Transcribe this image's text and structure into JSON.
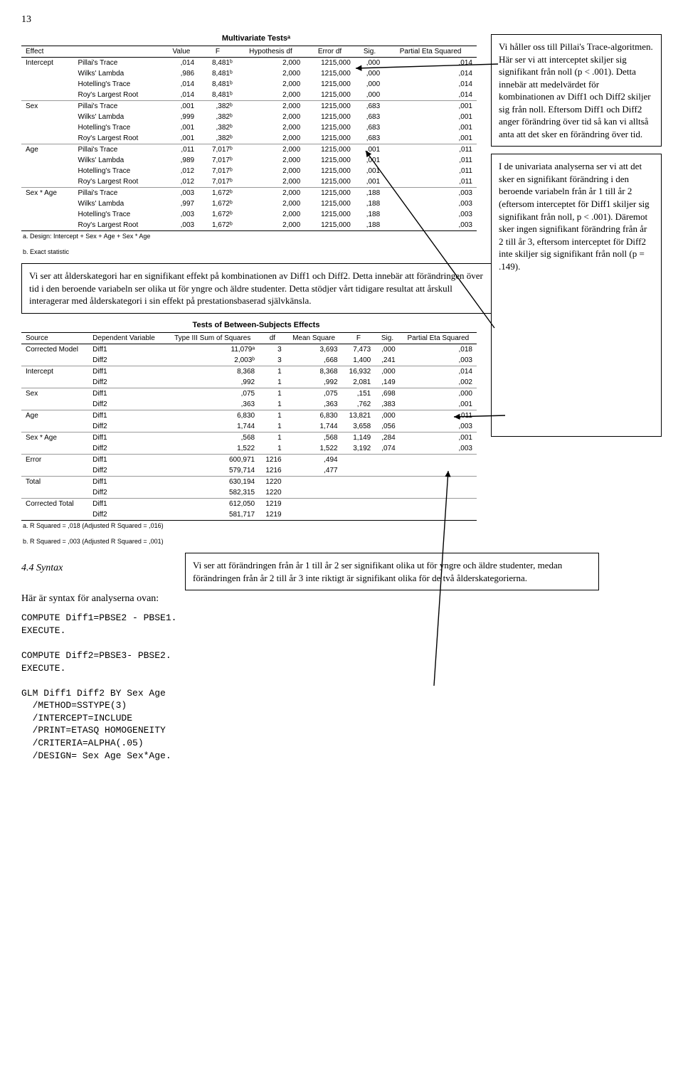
{
  "page_number": "13",
  "table1": {
    "title": "Multivariate Testsᵃ",
    "headers": [
      "Effect",
      "",
      "Value",
      "F",
      "Hypothesis df",
      "Error df",
      "Sig.",
      "Partial Eta Squared"
    ],
    "rows": [
      [
        "Intercept",
        "Pillai's Trace",
        ",014",
        "8,481ᵇ",
        "2,000",
        "1215,000",
        ",000",
        ",014"
      ],
      [
        "",
        "Wilks' Lambda",
        ",986",
        "8,481ᵇ",
        "2,000",
        "1215,000",
        ",000",
        ",014"
      ],
      [
        "",
        "Hotelling's Trace",
        ",014",
        "8,481ᵇ",
        "2,000",
        "1215,000",
        ",000",
        ",014"
      ],
      [
        "",
        "Roy's Largest Root",
        ",014",
        "8,481ᵇ",
        "2,000",
        "1215,000",
        ",000",
        ",014"
      ],
      [
        "Sex",
        "Pillai's Trace",
        ",001",
        ",382ᵇ",
        "2,000",
        "1215,000",
        ",683",
        ",001"
      ],
      [
        "",
        "Wilks' Lambda",
        ",999",
        ",382ᵇ",
        "2,000",
        "1215,000",
        ",683",
        ",001"
      ],
      [
        "",
        "Hotelling's Trace",
        ",001",
        ",382ᵇ",
        "2,000",
        "1215,000",
        ",683",
        ",001"
      ],
      [
        "",
        "Roy's Largest Root",
        ",001",
        ",382ᵇ",
        "2,000",
        "1215,000",
        ",683",
        ",001"
      ],
      [
        "Age",
        "Pillai's Trace",
        ",011",
        "7,017ᵇ",
        "2,000",
        "1215,000",
        ",001",
        ",011"
      ],
      [
        "",
        "Wilks' Lambda",
        ",989",
        "7,017ᵇ",
        "2,000",
        "1215,000",
        ",001",
        ",011"
      ],
      [
        "",
        "Hotelling's Trace",
        ",012",
        "7,017ᵇ",
        "2,000",
        "1215,000",
        ",001",
        ",011"
      ],
      [
        "",
        "Roy's Largest Root",
        ",012",
        "7,017ᵇ",
        "2,000",
        "1215,000",
        ",001",
        ",011"
      ],
      [
        "Sex * Age",
        "Pillai's Trace",
        ",003",
        "1,672ᵇ",
        "2,000",
        "1215,000",
        ",188",
        ",003"
      ],
      [
        "",
        "Wilks' Lambda",
        ",997",
        "1,672ᵇ",
        "2,000",
        "1215,000",
        ",188",
        ",003"
      ],
      [
        "",
        "Hotelling's Trace",
        ",003",
        "1,672ᵇ",
        "2,000",
        "1215,000",
        ",188",
        ",003"
      ],
      [
        "",
        "Roy's Largest Root",
        ",003",
        "1,672ᵇ",
        "2,000",
        "1215,000",
        ",188",
        ",003"
      ]
    ],
    "foot_a": "a. Design: Intercept + Sex + Age + Sex * Age",
    "foot_b": "b. Exact statistic"
  },
  "callout_upper_right_1": "Vi håller oss till Pillai's Trace-algoritmen. Här ser vi att interceptet skiljer sig signifikant från noll (p < .001). Detta innebär att medelvärdet för kombinationen av Diff1 och Diff2 skiljer sig från noll. Eftersom Diff1 och Diff2 anger förändring över tid så kan vi alltså anta att det sker en förändring över tid.",
  "callout_upper_right_2": "I de univariata analyserna ser vi att det sker en signifikant förändring i den beroende variabeln från år 1 till år 2 (eftersom interceptet för Diff1 skiljer sig signifikant från noll, p < .001). Däremot sker ingen signifikant förändring från år 2 till år 3, eftersom interceptet för Diff2 inte skiljer sig signifikant från noll (p = .149).",
  "callout_under_table1": "Vi ser att ålderskategori har en signifikant effekt på kombinationen av Diff1 och Diff2. Detta innebär att förändringen över tid i den beroende variabeln ser olika ut för yngre och äldre studenter. Detta stödjer vårt tidigare resultat att årskull interagerar med ålderskategori i sin effekt på prestationsbaserad självkänsla.",
  "table2": {
    "title": "Tests of Between-Subjects Effects",
    "headers": [
      "Source",
      "Dependent Variable",
      "Type III Sum of Squares",
      "df",
      "Mean Square",
      "F",
      "Sig.",
      "Partial Eta Squared"
    ],
    "rows": [
      [
        "Corrected Model",
        "Diff1",
        "11,079ᵃ",
        "3",
        "3,693",
        "7,473",
        ",000",
        ",018"
      ],
      [
        "",
        "Diff2",
        "2,003ᵇ",
        "3",
        ",668",
        "1,400",
        ",241",
        ",003"
      ],
      [
        "Intercept",
        "Diff1",
        "8,368",
        "1",
        "8,368",
        "16,932",
        ",000",
        ",014"
      ],
      [
        "",
        "Diff2",
        ",992",
        "1",
        ",992",
        "2,081",
        ",149",
        ",002"
      ],
      [
        "Sex",
        "Diff1",
        ",075",
        "1",
        ",075",
        ",151",
        ",698",
        ",000"
      ],
      [
        "",
        "Diff2",
        ",363",
        "1",
        ",363",
        ",762",
        ",383",
        ",001"
      ],
      [
        "Age",
        "Diff1",
        "6,830",
        "1",
        "6,830",
        "13,821",
        ",000",
        ",011"
      ],
      [
        "",
        "Diff2",
        "1,744",
        "1",
        "1,744",
        "3,658",
        ",056",
        ",003"
      ],
      [
        "Sex * Age",
        "Diff1",
        ",568",
        "1",
        ",568",
        "1,149",
        ",284",
        ",001"
      ],
      [
        "",
        "Diff2",
        "1,522",
        "1",
        "1,522",
        "3,192",
        ",074",
        ",003"
      ],
      [
        "Error",
        "Diff1",
        "600,971",
        "1216",
        ",494",
        "",
        "",
        ""
      ],
      [
        "",
        "Diff2",
        "579,714",
        "1216",
        ",477",
        "",
        "",
        ""
      ],
      [
        "Total",
        "Diff1",
        "630,194",
        "1220",
        "",
        "",
        "",
        ""
      ],
      [
        "",
        "Diff2",
        "582,315",
        "1220",
        "",
        "",
        "",
        ""
      ],
      [
        "Corrected Total",
        "Diff1",
        "612,050",
        "1219",
        "",
        "",
        "",
        ""
      ],
      [
        "",
        "Diff2",
        "581,717",
        "1219",
        "",
        "",
        "",
        ""
      ]
    ],
    "foot_a": "a. R Squared = ,018 (Adjusted R Squared = ,016)",
    "foot_b": "b. R Squared = ,003 (Adjusted R Squared = ,001)"
  },
  "callout_bottom_right": "Vi ser att förändringen från år 1 till år 2 ser signifikant olika ut för yngre och äldre studenter, medan förändringen från år 2 till år 3 inte riktigt är signifikant olika för de två ålderskategorierna.",
  "section_heading": "4.4 Syntax",
  "body_line": "Här är syntax för analyserna ovan:",
  "code": "COMPUTE Diff1=PBSE2 - PBSE1.\nEXECUTE.\n\nCOMPUTE Diff2=PBSE3- PBSE2.\nEXECUTE.\n\nGLM Diff1 Diff2 BY Sex Age\n  /METHOD=SSTYPE(3)\n  /INTERCEPT=INCLUDE\n  /PRINT=ETASQ HOMOGENEITY\n  /CRITERIA=ALPHA(.05)\n  /DESIGN= Sex Age Sex*Age.",
  "colors": {
    "border": "#000000",
    "gridline": "#999999",
    "bg": "#ffffff",
    "text": "#000000"
  }
}
